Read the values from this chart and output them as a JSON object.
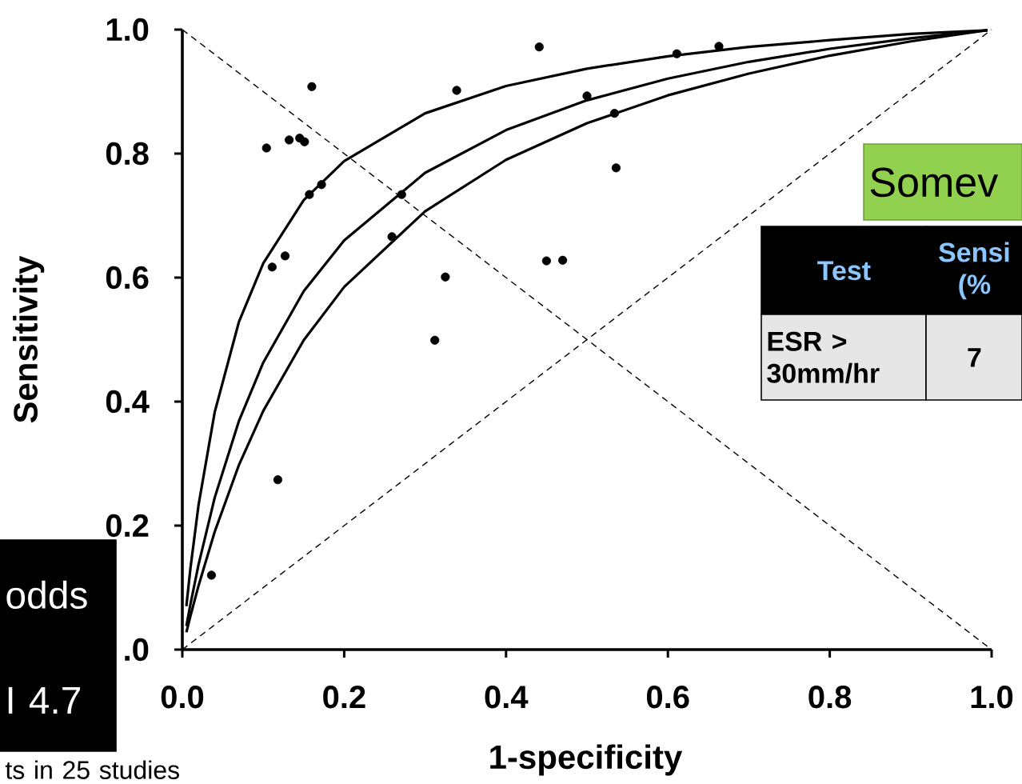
{
  "chart_data": {
    "type": "scatter",
    "xlabel": "1-specificity",
    "ylabel": "Sensitivity",
    "xlim": [
      0,
      1
    ],
    "ylim": [
      0,
      1
    ],
    "xticks": [
      {
        "value": 0,
        "label": "0.0"
      },
      0.2,
      0.4,
      0.6,
      0.8,
      {
        "value": 1,
        "label": "1.0"
      }
    ],
    "yticks": [
      {
        "value": 0,
        "label": ".0"
      },
      0.2,
      0.4,
      0.6,
      0.8,
      {
        "value": 1,
        "label": "1.0"
      }
    ],
    "annotations": [
      "Somev",
      "Test",
      "Sensi (%",
      "ESR > 30mm/hr",
      "7",
      "odds",
      "I 4.7",
      "ts in 25 studies"
    ],
    "series": [
      {
        "marker": "circle",
        "color": "#000000",
        "x": [
          0.104,
          0.132,
          0.145,
          0.151,
          0.16,
          0.157,
          0.172,
          0.118,
          0.111,
          0.127,
          0.036,
          0.271,
          0.259,
          0.325,
          0.312,
          0.339,
          0.441,
          0.45,
          0.47,
          0.5,
          0.534,
          0.536,
          0.611,
          0.663
        ],
        "values": [
          0.809,
          0.822,
          0.825,
          0.819,
          0.908,
          0.734,
          0.75,
          0.274,
          0.617,
          0.635,
          0.12,
          0.734,
          0.666,
          0.601,
          0.499,
          0.902,
          0.972,
          0.627,
          0.628,
          0.893,
          0.865,
          0.777,
          0.961,
          0.973
        ]
      },
      {
        "type": "line",
        "marker": "none",
        "line_style": "solid",
        "color": "#000000",
        "x": [
          0.005,
          0.01,
          0.02,
          0.04,
          0.07,
          0.1,
          0.15,
          0.2,
          0.3,
          0.4,
          0.5,
          0.6,
          0.7,
          0.8,
          0.9,
          0.995
        ],
        "values": [
          0.07,
          0.131,
          0.233,
          0.383,
          0.529,
          0.623,
          0.725,
          0.788,
          0.865,
          0.909,
          0.937,
          0.957,
          0.972,
          0.983,
          0.993,
          0.999
        ]
      },
      {
        "type": "line",
        "marker": "none",
        "line_style": "solid",
        "color": "#000000",
        "x": [
          0.005,
          0.01,
          0.02,
          0.04,
          0.07,
          0.1,
          0.15,
          0.2,
          0.3,
          0.4,
          0.5,
          0.6,
          0.7,
          0.8,
          0.9,
          0.995
        ],
        "values": [
          0.038,
          0.073,
          0.137,
          0.245,
          0.369,
          0.463,
          0.578,
          0.66,
          0.769,
          0.838,
          0.886,
          0.921,
          0.948,
          0.969,
          0.986,
          0.999
        ]
      },
      {
        "type": "line",
        "marker": "none",
        "line_style": "solid",
        "color": "#000000",
        "x": [
          0.005,
          0.01,
          0.02,
          0.04,
          0.07,
          0.1,
          0.15,
          0.2,
          0.3,
          0.4,
          0.5,
          0.6,
          0.7,
          0.8,
          0.9,
          0.995
        ],
        "values": [
          0.028,
          0.054,
          0.103,
          0.19,
          0.298,
          0.385,
          0.499,
          0.585,
          0.707,
          0.79,
          0.849,
          0.894,
          0.929,
          0.958,
          0.981,
          0.999
        ]
      },
      {
        "type": "line",
        "marker": "none",
        "line_style": "dashed",
        "color": "#000000",
        "x": [
          0,
          1
        ],
        "values": [
          0,
          1
        ]
      },
      {
        "type": "line",
        "marker": "none",
        "line_style": "dashed",
        "color": "#000000",
        "x": [
          0,
          1
        ],
        "values": [
          1,
          0
        ]
      }
    ]
  }
}
